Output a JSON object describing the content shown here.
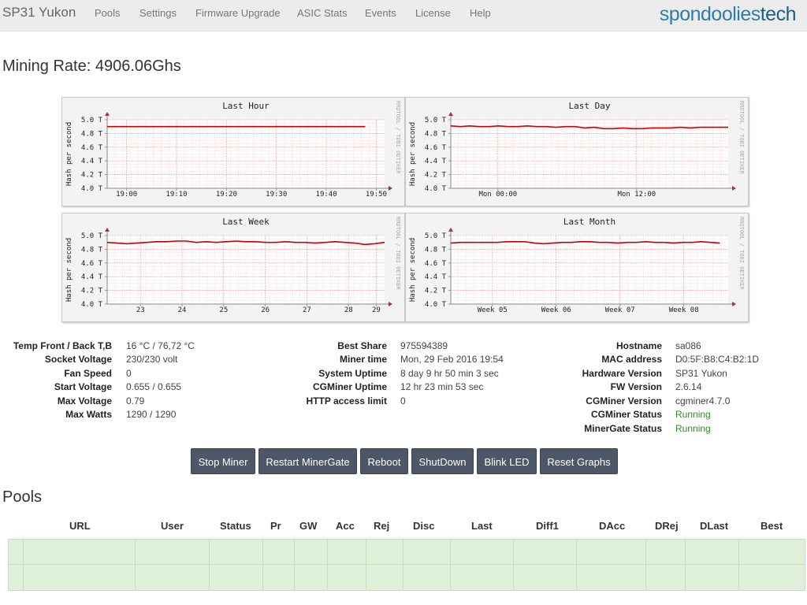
{
  "navbar": {
    "brand": "SP31 Yukon",
    "items": [
      "Pools",
      "Settings",
      "Firmware Upgrade",
      "ASIC Stats",
      "Events",
      "License",
      "Help"
    ],
    "logo_part1": "spondoolies",
    "logo_part2": "tech"
  },
  "mining_rate": "Mining Rate: 4906.06Ghs",
  "chart_data": [
    {
      "type": "line",
      "title": "Last Hour",
      "ylabel": "Hash per second",
      "side_label": "RRDTOOL / TOBI OETIKER",
      "ylim": [
        4.0,
        5.0
      ],
      "y_ticks": [
        "5.0 T",
        "4.8 T",
        "4.6 T",
        "4.4 T",
        "4.2 T",
        "4.0 T"
      ],
      "x_ticks": [
        "19:00",
        "19:10",
        "19:20",
        "19:30",
        "19:40",
        "19:50"
      ],
      "series": [
        {
          "values": [
            4.9,
            4.9,
            4.9,
            4.9,
            4.9,
            4.9,
            4.9,
            4.9,
            4.9,
            4.9,
            4.9,
            4.9,
            4.9,
            4.9,
            4.9,
            4.9,
            4.9,
            4.9,
            4.9,
            4.9,
            4.9,
            4.9,
            4.9,
            4.9
          ]
        }
      ],
      "series_end_fraction": 0.93,
      "grid": true,
      "line_color": "#cc0000"
    },
    {
      "type": "line",
      "title": "Last Day",
      "ylabel": "Hash per second",
      "side_label": "RRDTOOL / TOBI OETIKER",
      "ylim": [
        4.0,
        5.0
      ],
      "y_ticks": [
        "5.0 T",
        "4.8 T",
        "4.6 T",
        "4.4 T",
        "4.2 T",
        "4.0 T"
      ],
      "x_ticks": [
        "Mon 00:00",
        "Mon 12:00"
      ],
      "series": [
        {
          "values": [
            4.91,
            4.9,
            4.91,
            4.9,
            4.9,
            4.91,
            4.9,
            4.9,
            4.91,
            4.9,
            4.9,
            4.89,
            4.9,
            4.9,
            4.88,
            4.89,
            4.87,
            4.87,
            4.88,
            4.87,
            4.87,
            4.88,
            4.88,
            4.88,
            4.89,
            4.88,
            4.89,
            4.89,
            4.89,
            4.89
          ]
        }
      ],
      "grid": true,
      "line_color": "#cc0000"
    },
    {
      "type": "line",
      "title": "Last Week",
      "ylabel": "Hash per second",
      "side_label": "RRDTOOL / TOBI OETIKER",
      "ylim": [
        4.0,
        5.0
      ],
      "y_ticks": [
        "5.0 T",
        "4.8 T",
        "4.6 T",
        "4.4 T",
        "4.2 T",
        "4.0 T"
      ],
      "x_ticks": [
        "23",
        "24",
        "25",
        "26",
        "27",
        "28",
        "29"
      ],
      "series": [
        {
          "values": [
            4.9,
            4.89,
            4.88,
            4.89,
            4.9,
            4.91,
            4.91,
            4.92,
            4.92,
            4.9,
            4.91,
            4.9,
            4.91,
            4.92,
            4.91,
            4.91,
            4.9,
            4.9,
            4.91,
            4.9,
            4.9,
            4.89,
            4.9,
            4.91,
            4.9,
            4.89,
            4.87,
            4.88,
            4.9
          ]
        }
      ],
      "grid": true,
      "line_color": "#cc0000"
    },
    {
      "type": "line",
      "title": "Last Month",
      "ylabel": "Hash per second",
      "side_label": "RRDTOOL / TOBI OETIKER",
      "ylim": [
        4.0,
        5.0
      ],
      "y_ticks": [
        "5.0 T",
        "4.8 T",
        "4.6 T",
        "4.4 T",
        "4.2 T",
        "4.0 T"
      ],
      "x_ticks": [
        "Week 05",
        "Week 06",
        "Week 07",
        "Week 08"
      ],
      "series": [
        {
          "values": [
            4.89,
            4.9,
            4.9,
            4.9,
            4.9,
            4.9,
            4.91,
            4.91,
            4.91,
            4.89,
            4.88,
            4.89,
            4.9,
            4.9,
            4.91,
            4.91,
            4.9,
            4.9,
            4.89,
            4.9,
            4.9,
            4.91,
            4.9,
            4.9,
            4.89,
            4.9,
            4.9,
            4.91,
            4.9,
            4.89
          ]
        }
      ],
      "series_end_fraction": 0.97,
      "grid": true,
      "line_color": "#cc0000"
    }
  ],
  "stats": {
    "col1": [
      {
        "label": "Temp Front / Back T,B",
        "value": "16 °C / 76,72 °C"
      },
      {
        "label": "Socket Voltage",
        "value": "230/230 volt"
      },
      {
        "label": "Fan Speed",
        "value": "0"
      },
      {
        "label": "Start Voltage",
        "value": "0.655 / 0.655"
      },
      {
        "label": "Max Voltage",
        "value": "0.79"
      },
      {
        "label": "Max Watts",
        "value": "1290 / 1290"
      }
    ],
    "col2": [
      {
        "label": "Best Share",
        "value": "975594389"
      },
      {
        "label": "Miner time",
        "value": "Mon, 29 Feb 2016 19:54"
      },
      {
        "label": "System Uptime",
        "value": "8 day 9 hr 50 min 3 sec"
      },
      {
        "label": "CGMiner Uptime",
        "value": "12 hr 23 min 53 sec"
      },
      {
        "label": "HTTP access limit",
        "value": "0"
      }
    ],
    "col3": [
      {
        "label": "Hostname",
        "value": "sa086"
      },
      {
        "label": "MAC address",
        "value": "D0:5F:B8:C4:B2:1D"
      },
      {
        "label": "Hardware Version",
        "value": "SP31 Yukon"
      },
      {
        "label": "FW Version",
        "value": "2.6.14"
      },
      {
        "label": "CGMiner Version",
        "value": "cgminer4.7.0"
      },
      {
        "label": "CGMiner Status",
        "value": "Running",
        "status_color": "#2f8a2f"
      },
      {
        "label": "MinerGate Status",
        "value": "Running",
        "status_color": "#2f8a2f"
      }
    ]
  },
  "buttons": [
    "Stop Miner",
    "Restart MinerGate",
    "Reboot",
    "ShutDown",
    "Blink LED",
    "Reset Graphs"
  ],
  "pools": {
    "title": "Pools",
    "headers": [
      "URL",
      "User",
      "Status",
      "Pr",
      "GW",
      "Acc",
      "Rej",
      "Disc",
      "Last",
      "Diff1",
      "DAcc",
      "DRej",
      "DLast",
      "Best"
    ]
  }
}
